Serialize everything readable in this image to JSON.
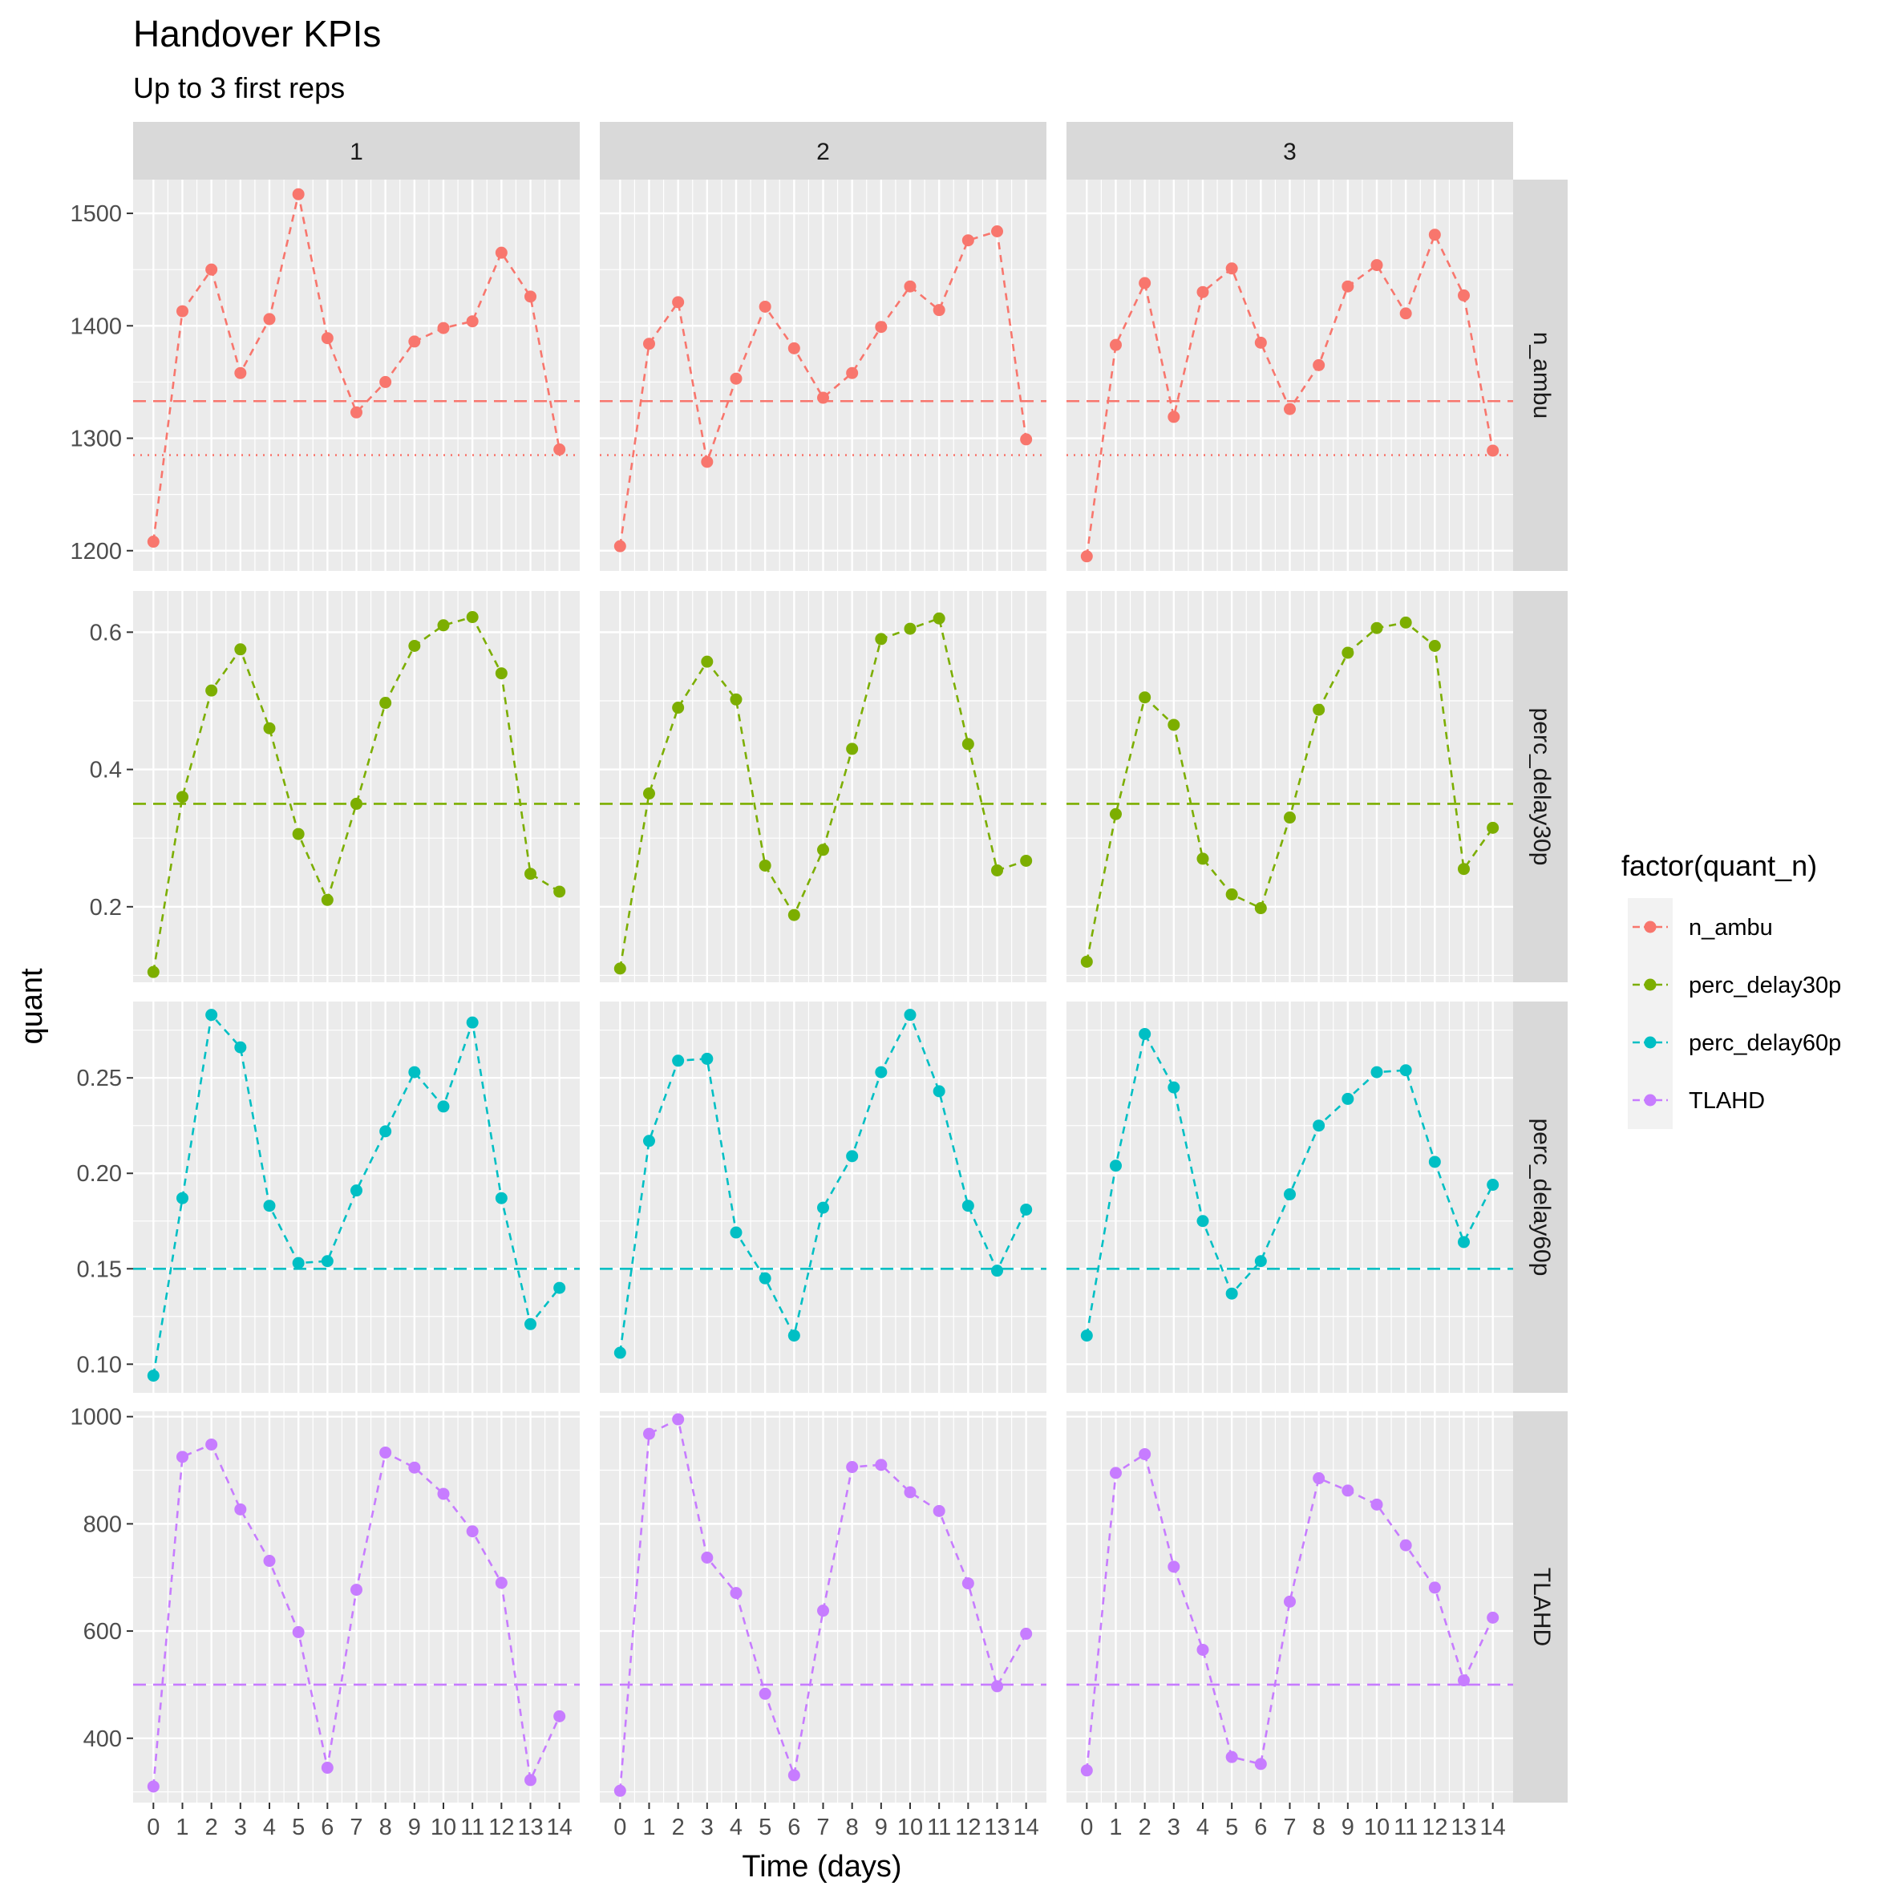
{
  "title": "Handover KPIs",
  "subtitle": "Up to 3 first reps",
  "xlabel": "Time (days)",
  "ylabel": "quant",
  "legend": {
    "title": "factor(quant_n)",
    "position": "right",
    "items": [
      "n_ambu",
      "perc_delay30p",
      "perc_delay60p",
      "TLAHD"
    ]
  },
  "colors": {
    "n_ambu": "#F8766D",
    "perc_delay30p": "#7CAE00",
    "perc_delay60p": "#00BFC4",
    "TLAHD": "#C77CFF",
    "panel_bg": "#EBEBEB",
    "strip_bg": "#D9D9D9",
    "grid": "#FFFFFF"
  },
  "chart_data": {
    "type": "line",
    "facet_cols": [
      "1",
      "2",
      "3"
    ],
    "facet_rows": [
      "n_ambu",
      "perc_delay30p",
      "perc_delay60p",
      "TLAHD"
    ],
    "x": [
      0,
      1,
      2,
      3,
      4,
      5,
      6,
      7,
      8,
      9,
      10,
      11,
      12,
      13,
      14
    ],
    "x_ticks": [
      "0",
      "1",
      "2",
      "3",
      "4",
      "5",
      "6",
      "7",
      "8",
      "9",
      "10",
      "11",
      "12",
      "13",
      "14"
    ],
    "xlim": [
      -0.7,
      14.7
    ],
    "grid": true,
    "line_style": "dashed",
    "rows": [
      {
        "name": "n_ambu",
        "ylim": [
          1182,
          1530
        ],
        "y_ticks": [
          "1200",
          "1300",
          "1400",
          "1500"
        ],
        "y_tick_values": [
          1200,
          1300,
          1400,
          1500
        ],
        "hlines": [
          {
            "value": 1333,
            "style": "dashed"
          },
          {
            "value": 1285,
            "style": "dotted"
          }
        ],
        "reps": [
          [
            1208,
            1413,
            1450,
            1358,
            1406,
            1517,
            1389,
            1323,
            1350,
            1386,
            1398,
            1404,
            1465,
            1426,
            1290
          ],
          [
            1204,
            1384,
            1421,
            1279,
            1353,
            1417,
            1380,
            1336,
            1358,
            1399,
            1435,
            1414,
            1476,
            1484,
            1299
          ],
          [
            1195,
            1383,
            1438,
            1319,
            1430,
            1451,
            1385,
            1326,
            1365,
            1435,
            1454,
            1411,
            1481,
            1427,
            1289
          ]
        ]
      },
      {
        "name": "perc_delay30p",
        "ylim": [
          0.09,
          0.66
        ],
        "y_ticks": [
          "0.2",
          "0.4",
          "0.6"
        ],
        "y_tick_values": [
          0.2,
          0.4,
          0.6
        ],
        "hlines": [
          {
            "value": 0.35,
            "style": "dashed"
          }
        ],
        "reps": [
          [
            0.105,
            0.36,
            0.515,
            0.575,
            0.46,
            0.306,
            0.21,
            0.35,
            0.497,
            0.58,
            0.61,
            0.622,
            0.54,
            0.248,
            0.222
          ],
          [
            0.11,
            0.365,
            0.49,
            0.557,
            0.502,
            0.26,
            0.188,
            0.283,
            0.43,
            0.59,
            0.605,
            0.62,
            0.437,
            0.253,
            0.267
          ],
          [
            0.12,
            0.335,
            0.505,
            0.465,
            0.27,
            0.218,
            0.198,
            0.33,
            0.487,
            0.57,
            0.606,
            0.614,
            0.58,
            0.255,
            0.315
          ]
        ]
      },
      {
        "name": "perc_delay60p",
        "ylim": [
          0.085,
          0.29
        ],
        "y_ticks": [
          "0.10",
          "0.15",
          "0.20",
          "0.25"
        ],
        "y_tick_values": [
          0.1,
          0.15,
          0.2,
          0.25
        ],
        "hlines": [
          {
            "value": 0.15,
            "style": "dashed"
          }
        ],
        "reps": [
          [
            0.094,
            0.187,
            0.283,
            0.266,
            0.183,
            0.153,
            0.154,
            0.191,
            0.222,
            0.253,
            0.235,
            0.279,
            0.187,
            0.121,
            0.14
          ],
          [
            0.106,
            0.217,
            0.259,
            0.26,
            0.169,
            0.145,
            0.115,
            0.182,
            0.209,
            0.253,
            0.283,
            0.243,
            0.183,
            0.149,
            0.181
          ],
          [
            0.115,
            0.204,
            0.273,
            0.245,
            0.175,
            0.137,
            0.154,
            0.189,
            0.225,
            0.239,
            0.253,
            0.254,
            0.206,
            0.164,
            0.194
          ]
        ]
      },
      {
        "name": "TLAHD",
        "ylim": [
          280,
          1010
        ],
        "y_ticks": [
          "400",
          "600",
          "800",
          "1000"
        ],
        "y_tick_values": [
          400,
          600,
          800,
          1000
        ],
        "hlines": [
          {
            "value": 500,
            "style": "dashed"
          }
        ],
        "reps": [
          [
            310,
            925,
            948,
            827,
            731,
            598,
            345,
            677,
            933,
            905,
            856,
            786,
            690,
            322,
            441
          ],
          [
            302,
            968,
            995,
            737,
            671,
            483,
            331,
            638,
            906,
            910,
            859,
            824,
            689,
            497,
            595
          ],
          [
            340,
            895,
            930,
            720,
            565,
            365,
            352,
            655,
            885,
            862,
            836,
            760,
            681,
            508,
            625
          ]
        ]
      }
    ]
  }
}
